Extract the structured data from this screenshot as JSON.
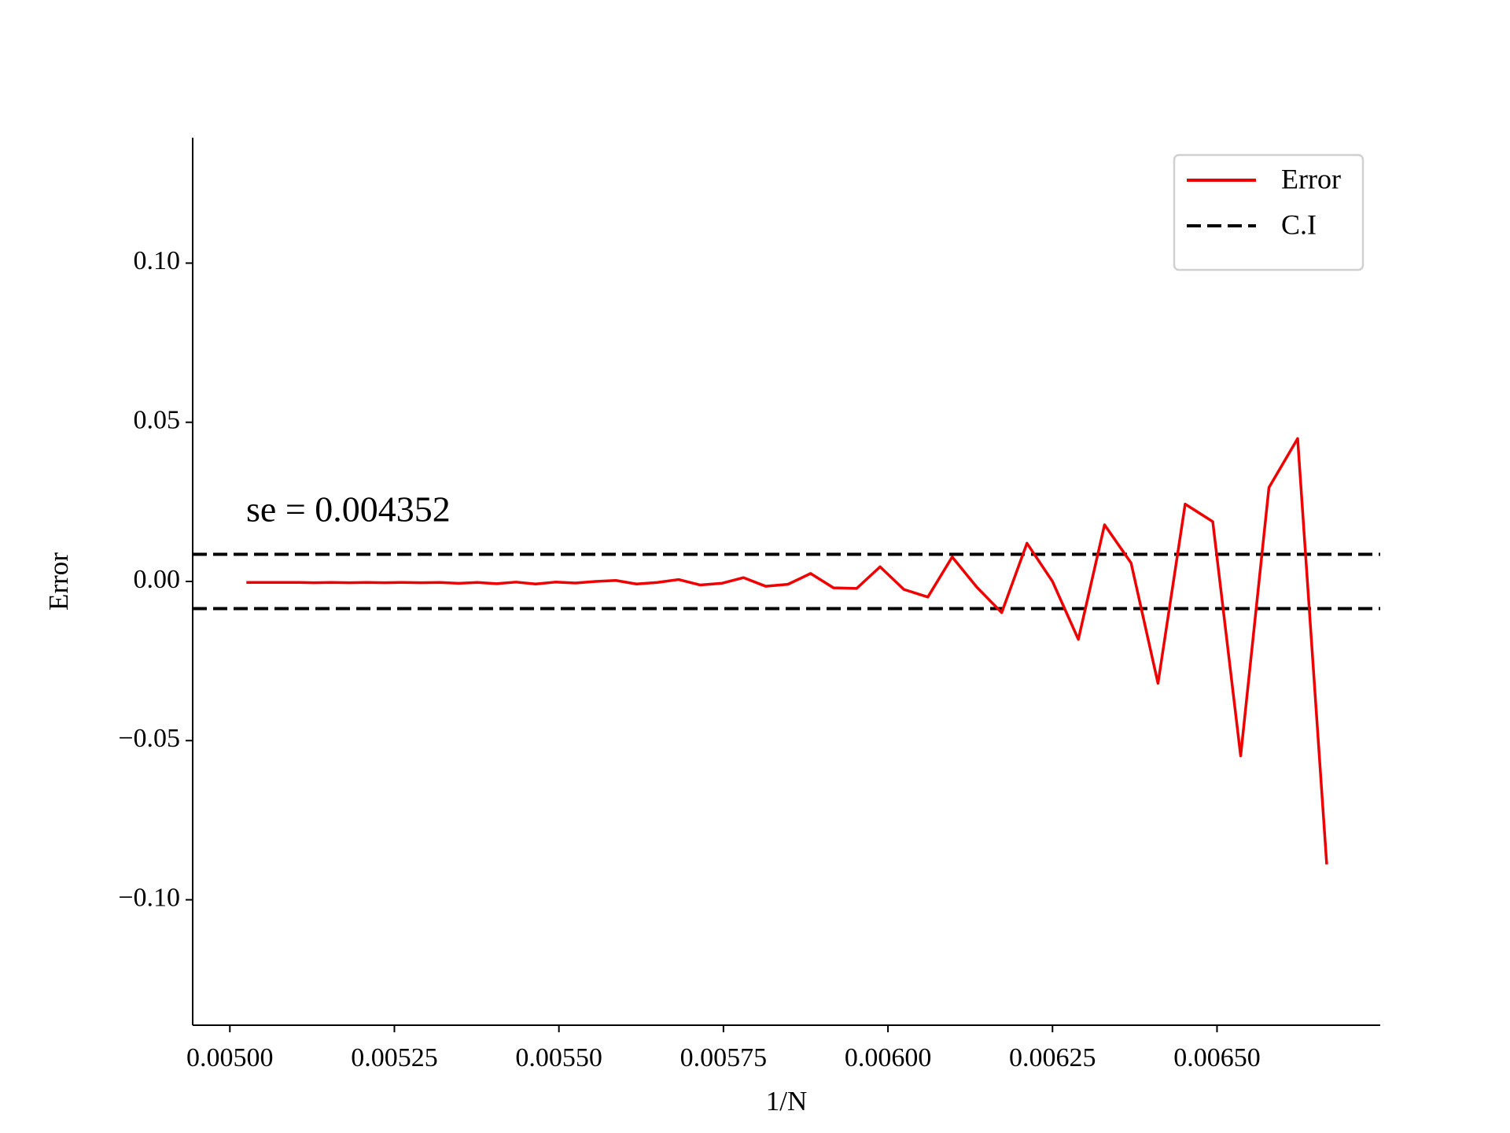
{
  "chart_data": {
    "type": "line",
    "xlabel": "1/N",
    "ylabel": "Error",
    "annotation": "se = 0.004352",
    "x": [
      0.0050251,
      0.0050505,
      0.0050761,
      0.005102,
      0.0051282,
      0.0051546,
      0.0051813,
      0.0052083,
      0.0052356,
      0.0052632,
      0.005291,
      0.0053191,
      0.0053476,
      0.0053763,
      0.0054054,
      0.0054348,
      0.0054645,
      0.0054945,
      0.0055249,
      0.0055556,
      0.0055866,
      0.005618,
      0.0056497,
      0.0056818,
      0.0057143,
      0.0057471,
      0.0057803,
      0.005814,
      0.005848,
      0.0058824,
      0.0059172,
      0.0059524,
      0.005988,
      0.0060241,
      0.0060606,
      0.0060976,
      0.006135,
      0.0061728,
      0.0062112,
      0.00625,
      0.0062893,
      0.0063291,
      0.0063694,
      0.0064103,
      0.0064516,
      0.0064935,
      0.0065359,
      0.0065789,
      0.0066225,
      0.0066667
    ],
    "series": [
      {
        "name": "Error",
        "color": "#ee0000",
        "values": [
          -0.0003,
          -0.0003,
          -0.0003,
          -0.0003,
          -0.0004,
          -0.0003,
          -0.0004,
          -0.0003,
          -0.0004,
          -0.0003,
          -0.0004,
          -0.0003,
          -0.0006,
          -0.0003,
          -0.0007,
          -0.0002,
          -0.0008,
          -0.0002,
          -0.0005,
          0.0,
          0.0003,
          -0.0008,
          -0.0003,
          0.0006,
          -0.0011,
          -0.0006,
          0.0012,
          -0.0015,
          -0.0009,
          0.0025,
          -0.002,
          -0.0022,
          0.0046,
          -0.0025,
          -0.0049,
          0.0077,
          -0.0018,
          -0.0098,
          0.012,
          0.0,
          -0.0182,
          0.0178,
          0.0058,
          -0.032,
          0.0243,
          0.0188,
          -0.0548,
          0.0295,
          0.0449,
          -0.0889
        ]
      }
    ],
    "hlines": {
      "name": "C.I",
      "color": "#000000",
      "values": [
        0.00853,
        -0.00853
      ]
    },
    "xlim": [
      0.0049435,
      0.006748
    ],
    "ylim": [
      -0.1394,
      0.1394
    ],
    "xticks": [
      {
        "value": 0.005,
        "label": "0.00500"
      },
      {
        "value": 0.00525,
        "label": "0.00525"
      },
      {
        "value": 0.0055,
        "label": "0.00550"
      },
      {
        "value": 0.00575,
        "label": "0.00575"
      },
      {
        "value": 0.006,
        "label": "0.00600"
      },
      {
        "value": 0.00625,
        "label": "0.00625"
      },
      {
        "value": 0.0065,
        "label": "0.00650"
      }
    ],
    "yticks": [
      {
        "value": -0.1,
        "label": "−0.10"
      },
      {
        "value": -0.05,
        "label": "−0.05"
      },
      {
        "value": 0.0,
        "label": "0.00"
      },
      {
        "value": 0.05,
        "label": "0.05"
      },
      {
        "value": 0.1,
        "label": "0.10"
      }
    ],
    "legend": "upper right"
  }
}
